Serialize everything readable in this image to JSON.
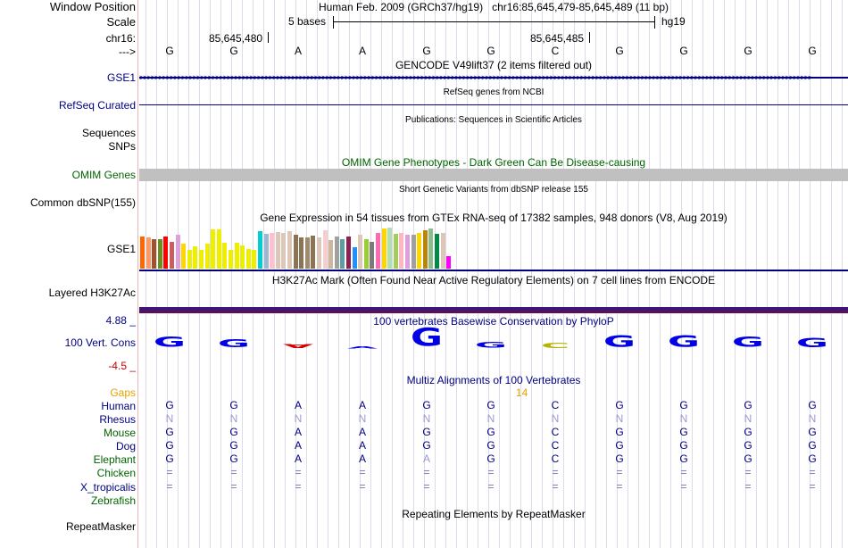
{
  "header": {
    "window_position_label": "Window Position",
    "window_position_value": "Human Feb. 2009 (GRCh37/hg19)   chr16:85,645,479-85,645,489 (11 bp)",
    "scale_label": "Scale",
    "scale_text": "5 bases",
    "scale_assembly": "hg19",
    "chrom_label": "chr16:",
    "coord_1": "85,645,480",
    "coord_2": "85,645,485",
    "strand_label": "--->"
  },
  "reference_bases": [
    "G",
    "G",
    "A",
    "A",
    "G",
    "G",
    "C",
    "G",
    "G",
    "G",
    "G"
  ],
  "tracks": {
    "gencode": {
      "label": "GSE1",
      "title": "GENCODE V49lift37 (2 items filtered out)"
    },
    "refseq": {
      "label": "RefSeq Curated",
      "title": "RefSeq genes from NCBI"
    },
    "publications": {
      "label_1": "Sequences",
      "label_2": "SNPs",
      "title": "Publications: Sequences in Scientific Articles"
    },
    "omim": {
      "label": "OMIM Genes",
      "title": "OMIM Gene Phenotypes - Dark Green Can Be Disease-causing"
    },
    "dbsnp": {
      "label": "Common dbSNP(155)",
      "title": "Short Genetic Variants from dbSNP release 155"
    },
    "gtex": {
      "label": "GSE1",
      "title": "Gene Expression in 54 tissues from GTEx RNA-seq of 17382 samples, 948 donors (V8, Aug 2019)",
      "tissue_values": [
        36,
        35,
        33,
        33,
        36,
        30,
        38,
        28,
        21,
        25,
        21,
        28,
        44,
        44,
        29,
        21,
        29,
        26,
        22,
        21,
        42,
        39,
        40,
        41,
        40,
        42,
        38,
        35,
        35,
        37,
        35,
        43,
        32,
        36,
        33,
        36,
        24,
        38,
        33,
        30,
        40,
        45,
        46,
        39,
        40,
        38,
        38,
        40,
        43,
        45,
        39,
        40,
        14,
        0
      ],
      "tissue_colors": [
        "#ff6600",
        "#ff9966",
        "#a0522d",
        "#6b8e23",
        "#ff0000",
        "#cd5c5c",
        "#dda0dd",
        "#ffd700",
        "#eeee00",
        "#eeee00",
        "#eeee00",
        "#eeee00",
        "#eeee00",
        "#eeee00",
        "#eeee00",
        "#eeee00",
        "#eeee00",
        "#eeee00",
        "#eeee00",
        "#eeee00",
        "#00ced1",
        "#9cb7d2",
        "#ffc0cb",
        "#dcc7b9",
        "#dcc7b9",
        "#dcc7b9",
        "#8b7355",
        "#8b7355",
        "#a08a6e",
        "#8b7355",
        "#dcc7b9",
        "#f5cfcf",
        "#cdb79e",
        "#a0a0a0",
        "#5f9ea0",
        "#8b2252",
        "#1e90ff",
        "#dcc7b9",
        "#9acd32",
        "#7a7a7a",
        "#ff69b4",
        "#ffd700",
        "#b2dfb2",
        "#a2cd5a",
        "#ffb6c1",
        "#dda0dd",
        "#a0a0a0",
        "#ffd700",
        "#b8860b",
        "#8fbc8f",
        "#008b45",
        "#dcc7b9",
        "#ff00ff",
        "#ffffff"
      ]
    },
    "h3k27ac": {
      "label": "Layered H3K27Ac",
      "title": "H3K27Ac Mark (Often Found Near Active Regulatory Elements) on 7 cell lines from ENCODE"
    },
    "phylop": {
      "label": "100 Vert. Cons",
      "max_label": "4.88 _",
      "min_label": "-4.5 _",
      "title": "100 vertebrates Basewise Conservation by PhyloP",
      "glyphs": [
        "G",
        "G",
        "A",
        "A",
        "G",
        "G",
        "C",
        "G",
        "G",
        "G",
        "G"
      ],
      "scores": [
        1.6,
        1.3,
        -0.6,
        0.4,
        2.7,
        0.9,
        0.7,
        1.8,
        1.8,
        1.6,
        1.4
      ],
      "glyph_colors": [
        "#0000e6",
        "#0000e6",
        "#d40000",
        "#0000e6",
        "#0000e6",
        "#0000e6",
        "#b5b500",
        "#0000e6",
        "#0000e6",
        "#0000e6",
        "#0000e6"
      ]
    },
    "multiz": {
      "title": "Multiz Alignments of 100 Vertebrates",
      "gaps_label": "Gaps",
      "gap_count": "14",
      "species": [
        {
          "name": "Human",
          "bases": [
            "G",
            "G",
            "A",
            "A",
            "G",
            "G",
            "C",
            "G",
            "G",
            "G",
            "G"
          ]
        },
        {
          "name": "Rhesus",
          "bases": [
            "N",
            "N",
            "N",
            "N",
            "N",
            "N",
            "N",
            "N",
            "N",
            "N",
            "N"
          ]
        },
        {
          "name": "Mouse",
          "bases": [
            "G",
            "G",
            "A",
            "A",
            "G",
            "G",
            "C",
            "G",
            "G",
            "G",
            "G"
          ]
        },
        {
          "name": "Dog",
          "bases": [
            "G",
            "G",
            "A",
            "A",
            "G",
            "G",
            "C",
            "G",
            "G",
            "G",
            "G"
          ]
        },
        {
          "name": "Elephant",
          "bases": [
            "G",
            "G",
            "A",
            "A",
            "A",
            "G",
            "C",
            "G",
            "G",
            "G",
            "G"
          ]
        },
        {
          "name": "Chicken",
          "bases": [
            "=",
            "=",
            "=",
            "=",
            "=",
            "=",
            "=",
            "=",
            "=",
            "=",
            "="
          ]
        },
        {
          "name": "X_tropicalis",
          "bases": [
            "=",
            "=",
            "=",
            "=",
            "=",
            "=",
            "=",
            "=",
            "=",
            "=",
            "="
          ]
        },
        {
          "name": "Zebrafish",
          "bases": [
            "",
            "",
            "",
            "",
            "",
            "",
            "",
            "",
            "",
            "",
            ""
          ]
        }
      ]
    },
    "repeatmasker": {
      "label": "RepeatMasker",
      "title": "Repeating Elements by RepeatMasker"
    }
  },
  "colors": {
    "navy": "#000080",
    "gaps_orange": "#e6a100",
    "omim_green": "#006400",
    "omim_bar": "#c0c0c0",
    "h3k27ac_bar": "#5a0f5a"
  }
}
